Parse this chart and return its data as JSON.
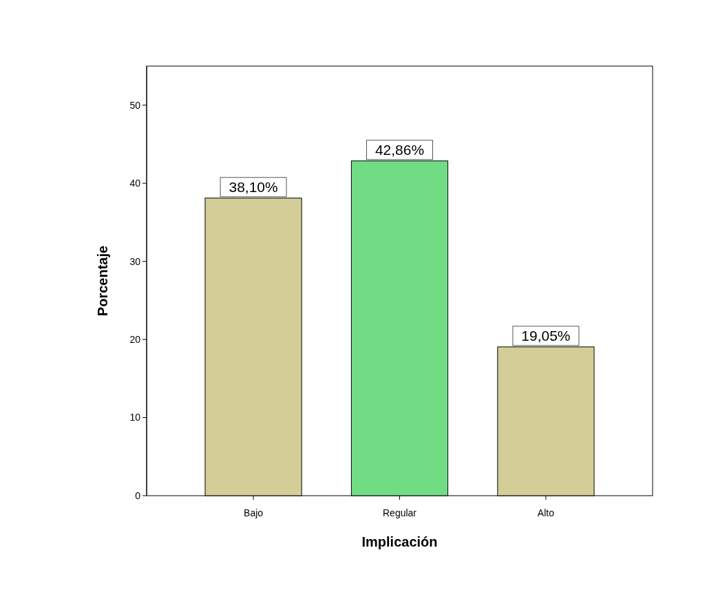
{
  "chart_data": {
    "type": "bar",
    "xlabel": "Implicación",
    "ylabel": "Porcentaje",
    "categories": [
      "Bajo",
      "Regular",
      "Alto"
    ],
    "values": [
      38.1,
      42.86,
      19.05
    ],
    "colors": [
      "#d3ce98",
      "#70dd85",
      "#d3ce98"
    ],
    "value_labels": [
      "38,10%",
      "42,86%",
      "19,05%"
    ],
    "ylim": [
      0,
      55
    ],
    "yticks": [
      0,
      10,
      20,
      30,
      40,
      50
    ],
    "grid": false
  }
}
